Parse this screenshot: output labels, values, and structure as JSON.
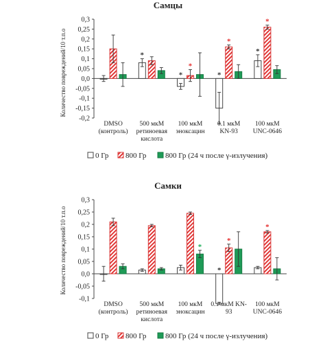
{
  "colors": {
    "s0": "#ffffff",
    "s800_stroke": "#d93a3a",
    "s800_hatch": "#e0302f",
    "s24": "#1f9b57",
    "axis": "#444444",
    "star_black": "#333333",
    "star_red": "#e52e2e",
    "star_green": "#1fae5a"
  },
  "legend": [
    {
      "label": "0 Гр",
      "series": 0
    },
    {
      "label": "800 Гр",
      "series": 1
    },
    {
      "label": "800 Гр (24 ч после γ-излучения)",
      "series": 2
    }
  ],
  "chart_data": [
    {
      "type": "bar",
      "title": "Самцы",
      "ylabel": "Количество повреждений/10 т.п.о",
      "ylim": [
        -0.2,
        0.3
      ],
      "yticks": [
        "0,3",
        "0,25",
        "0,2",
        "0,15",
        "0,1",
        "0,05",
        "0,0",
        "-0,05",
        "-0,1",
        "-0,15",
        "-0,2"
      ],
      "categories": [
        [
          "DMSO",
          "(контроль)"
        ],
        [
          "500 мкМ",
          "ретиноевая",
          "кислота"
        ],
        [
          "100 мкМ",
          "эноксацин"
        ],
        [
          "0.1 мкМ",
          "KN-93"
        ],
        [
          "100 мкМ",
          "UNC-0646"
        ]
      ],
      "series": [
        {
          "name": "0 Гр",
          "values": [
            0.0,
            0.08,
            -0.04,
            -0.15,
            0.09
          ],
          "errors": [
            0.015,
            0.02,
            0.015,
            0.08,
            0.03
          ]
        },
        {
          "name": "800 Гр",
          "values": [
            0.15,
            0.09,
            0.015,
            0.16,
            0.26
          ],
          "errors": [
            0.07,
            0.02,
            0.03,
            0.01,
            0.01
          ]
        },
        {
          "name": "800 Гр (24 ч после γ-излучения)",
          "values": [
            0.02,
            0.04,
            0.02,
            0.035,
            0.045
          ],
          "errors": [
            0.06,
            0.015,
            0.11,
            0.035,
            0.02
          ]
        }
      ],
      "stars": [
        {
          "category": 1,
          "series": 0,
          "color": "black"
        },
        {
          "category": 2,
          "series": 0,
          "color": "black"
        },
        {
          "category": 2,
          "series": 1,
          "color": "red"
        },
        {
          "category": 3,
          "series": 0,
          "color": "black"
        },
        {
          "category": 3,
          "series": 1,
          "color": "red"
        },
        {
          "category": 4,
          "series": 0,
          "color": "black"
        },
        {
          "category": 4,
          "series": 1,
          "color": "red"
        }
      ]
    },
    {
      "type": "bar",
      "title": "Самки",
      "ylabel": "Количество повреждений/10 т.п.о",
      "ylim": [
        -0.1,
        0.3
      ],
      "yticks": [
        "0,3",
        "0,25",
        "0,2",
        "0,15",
        "0,1",
        "0,05",
        "0,0",
        "-0,05",
        "-0,1"
      ],
      "categories": [
        [
          "DMSO",
          "(контроль)"
        ],
        [
          "500 мкМ",
          "ретиноевая",
          "кислота"
        ],
        [
          "100 мкМ",
          "эноксацин"
        ],
        [
          "0.1 мкМ KN-",
          "93"
        ],
        [
          "100 мкМ",
          "UNC-0646"
        ]
      ],
      "series": [
        {
          "name": "0 Гр",
          "values": [
            0.0,
            0.015,
            0.025,
            -0.12,
            0.025
          ],
          "errors": [
            0.03,
            0.005,
            0.01,
            0.005,
            0.005
          ]
        },
        {
          "name": "800 Гр",
          "values": [
            0.21,
            0.195,
            0.245,
            0.105,
            0.17
          ],
          "errors": [
            0.015,
            0.005,
            0.005,
            0.015,
            0.005
          ]
        },
        {
          "name": "800 Гр (24 ч после γ-излучения)",
          "values": [
            0.03,
            0.02,
            0.08,
            0.1,
            0.02
          ],
          "errors": [
            0.01,
            0.005,
            0.015,
            0.07,
            0.045
          ]
        }
      ],
      "stars": [
        {
          "category": 2,
          "series": 2,
          "color": "green"
        },
        {
          "category": 3,
          "series": 0,
          "color": "black"
        },
        {
          "category": 3,
          "series": 1,
          "color": "red"
        },
        {
          "category": 4,
          "series": 1,
          "color": "red"
        }
      ]
    }
  ]
}
